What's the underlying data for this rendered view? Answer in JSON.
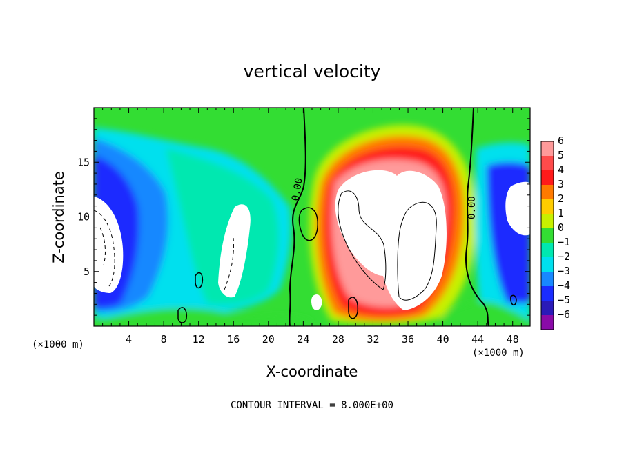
{
  "chart_data": {
    "type": "heatmap",
    "title": "vertical velocity",
    "xlabel": "X-coordinate",
    "ylabel": "Z-coordinate",
    "x_unit": "(×1000 m)",
    "xlim": [
      0,
      50
    ],
    "ylim": [
      0,
      20
    ],
    "x_ticks": [
      4,
      8,
      12,
      16,
      20,
      24,
      28,
      32,
      36,
      40,
      44,
      48
    ],
    "y_ticks": [
      5,
      10,
      15
    ],
    "colorbar": {
      "levels": [
        6,
        5,
        4,
        3,
        2,
        1,
        0,
        -1,
        -2,
        -3,
        -4,
        -5,
        -6
      ],
      "colors": [
        "#ff9a9a",
        "#ff4b4b",
        "#ff1a1a",
        "#ff7a00",
        "#ffcc00",
        "#c8f000",
        "#33dd33",
        "#00e8b0",
        "#00e0ee",
        "#1888ff",
        "#1a2cff",
        "#2a1ab8",
        "#8a0aa8"
      ]
    },
    "contour_labels": [
      "0.00",
      "0.00"
    ],
    "footnote": "CONTOUR INTERVAL = 8.000E+00"
  }
}
